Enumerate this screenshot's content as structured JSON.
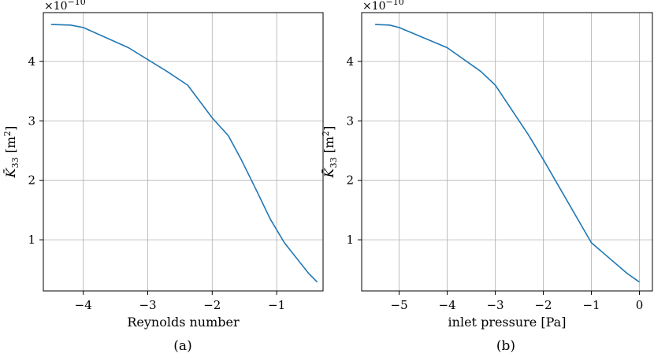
{
  "colors": {
    "series": "#1f77b4",
    "grid": "#b0b0b0",
    "axis": "#000000"
  },
  "chart_data": [
    {
      "type": "line",
      "panel_label": "(a)",
      "title": "",
      "xlabel": "Reynolds number",
      "ylabel_main": "K̄",
      "ylabel_sub": "33",
      "ylabel_unit_open": " [m",
      "ylabel_unit_sup": "2",
      "ylabel_unit_close": "]",
      "y_multiplier": "×10",
      "y_multiplier_exp": "−10",
      "grid": true,
      "xlim": [
        -4.62,
        -0.28
      ],
      "ylim": [
        0.14,
        4.82
      ],
      "xticks": [
        -4,
        -3,
        -2,
        -1
      ],
      "xtick_labels": [
        "−4",
        "−3",
        "−2",
        "−1"
      ],
      "yticks": [
        1,
        2,
        3,
        4
      ],
      "ytick_labels": [
        "1",
        "2",
        "3",
        "4"
      ],
      "series": [
        {
          "x": [
            -4.5,
            -4.2,
            -4.0,
            -3.3,
            -2.7,
            -2.38,
            -2.0,
            -1.75,
            -1.55,
            -1.3,
            -1.1,
            -0.88,
            -0.5,
            -0.37
          ],
          "y": [
            4.62,
            4.61,
            4.57,
            4.23,
            3.83,
            3.6,
            3.05,
            2.75,
            2.35,
            1.8,
            1.35,
            0.95,
            0.43,
            0.29
          ]
        }
      ]
    },
    {
      "type": "line",
      "panel_label": "(b)",
      "title": "",
      "xlabel": "inlet pressure [Pa]",
      "ylabel_main": "K̄",
      "ylabel_sub": "33",
      "ylabel_unit_open": " [m",
      "ylabel_unit_sup": "2",
      "ylabel_unit_close": "]",
      "y_multiplier": "×10",
      "y_multiplier_exp": "−10",
      "grid": true,
      "xlim": [
        -5.78,
        0.27
      ],
      "ylim": [
        0.14,
        4.82
      ],
      "xticks": [
        -5,
        -4,
        -3,
        -2,
        -1,
        0
      ],
      "xtick_labels": [
        "−5",
        "−4",
        "−3",
        "−2",
        "−1",
        "0"
      ],
      "yticks": [
        1,
        2,
        3,
        4
      ],
      "ytick_labels": [
        "1",
        "2",
        "3",
        "4"
      ],
      "series": [
        {
          "x": [
            -5.5,
            -5.2,
            -5.0,
            -4.0,
            -3.3,
            -3.0,
            -2.3,
            -2.0,
            -1.0,
            -0.25,
            0.0
          ],
          "y": [
            4.62,
            4.61,
            4.57,
            4.23,
            3.83,
            3.6,
            2.75,
            2.35,
            0.95,
            0.43,
            0.29
          ]
        }
      ]
    }
  ]
}
